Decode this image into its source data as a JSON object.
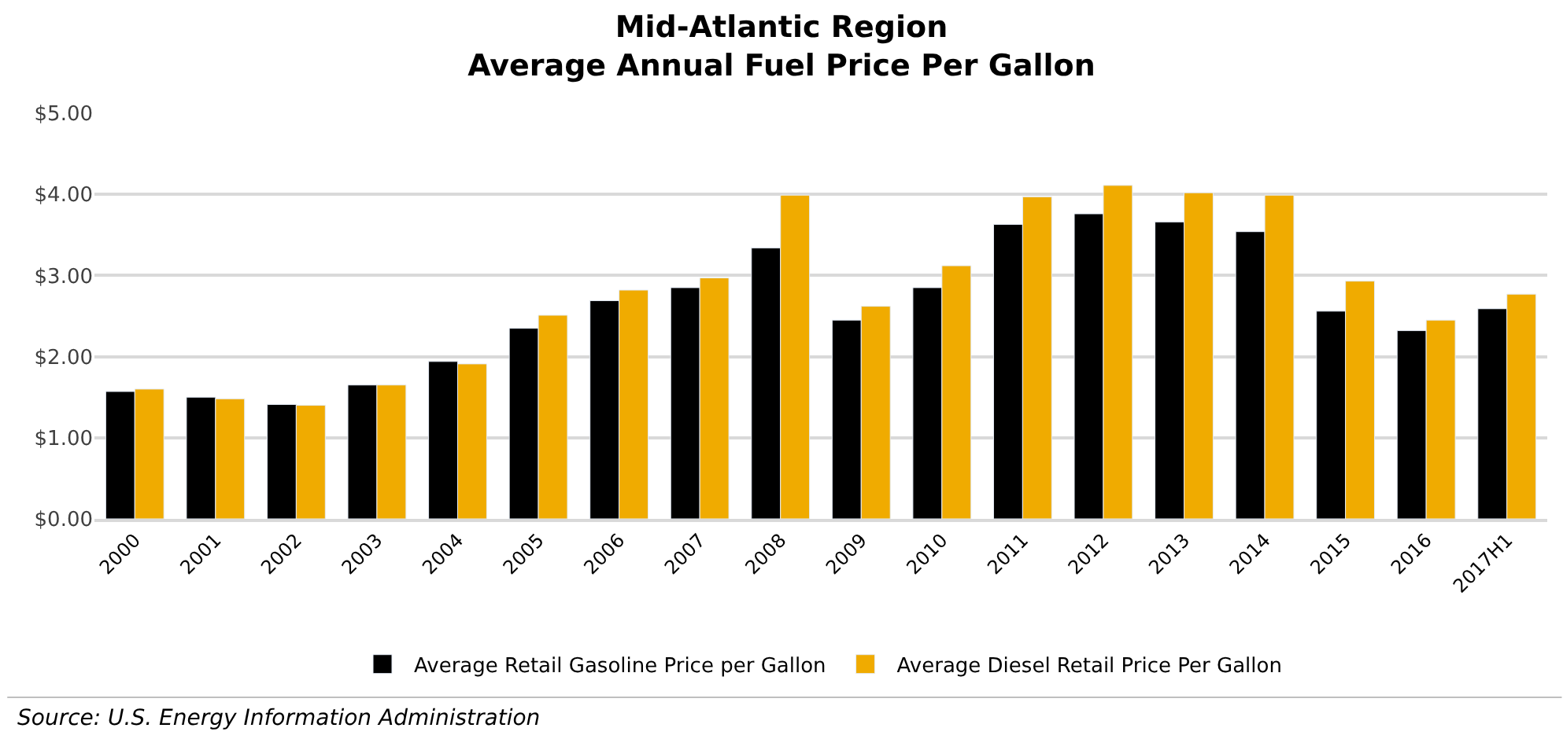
{
  "chart_data": {
    "type": "bar",
    "title": "Mid-Atlantic Region\nAverage Annual Fuel Price Per Gallon",
    "categories": [
      "2000",
      "2001",
      "2002",
      "2003",
      "2004",
      "2005",
      "2006",
      "2007",
      "2008",
      "2009",
      "2010",
      "2011",
      "2012",
      "2013",
      "2014",
      "2015",
      "2016",
      "2017H1"
    ],
    "series": [
      {
        "name": "Average Retail Gasoline Price per Gallon",
        "color": "#000000",
        "values": [
          1.57,
          1.5,
          1.41,
          1.65,
          1.94,
          2.35,
          2.69,
          2.85,
          3.34,
          2.45,
          2.85,
          3.63,
          3.76,
          3.66,
          3.54,
          2.56,
          2.32,
          2.59
        ]
      },
      {
        "name": "Average Diesel Retail Price Per Gallon",
        "color": "#f0ab00",
        "values": [
          1.6,
          1.48,
          1.4,
          1.65,
          1.91,
          2.51,
          2.82,
          2.97,
          3.99,
          2.62,
          3.12,
          3.97,
          4.11,
          4.02,
          3.99,
          2.93,
          2.45,
          2.77
        ]
      }
    ],
    "ylim": [
      0,
      5
    ],
    "yticks": [
      {
        "value": 0,
        "label": "$0.00"
      },
      {
        "value": 1,
        "label": "$1.00"
      },
      {
        "value": 2,
        "label": "$2.00"
      },
      {
        "value": 3,
        "label": "$3.00"
      },
      {
        "value": 4,
        "label": "$4.00"
      },
      {
        "value": 5,
        "label": "$5.00"
      }
    ],
    "grid": "y",
    "legend": "bottom",
    "annotations": [
      "Source: U.S. Energy Information Administration"
    ]
  }
}
